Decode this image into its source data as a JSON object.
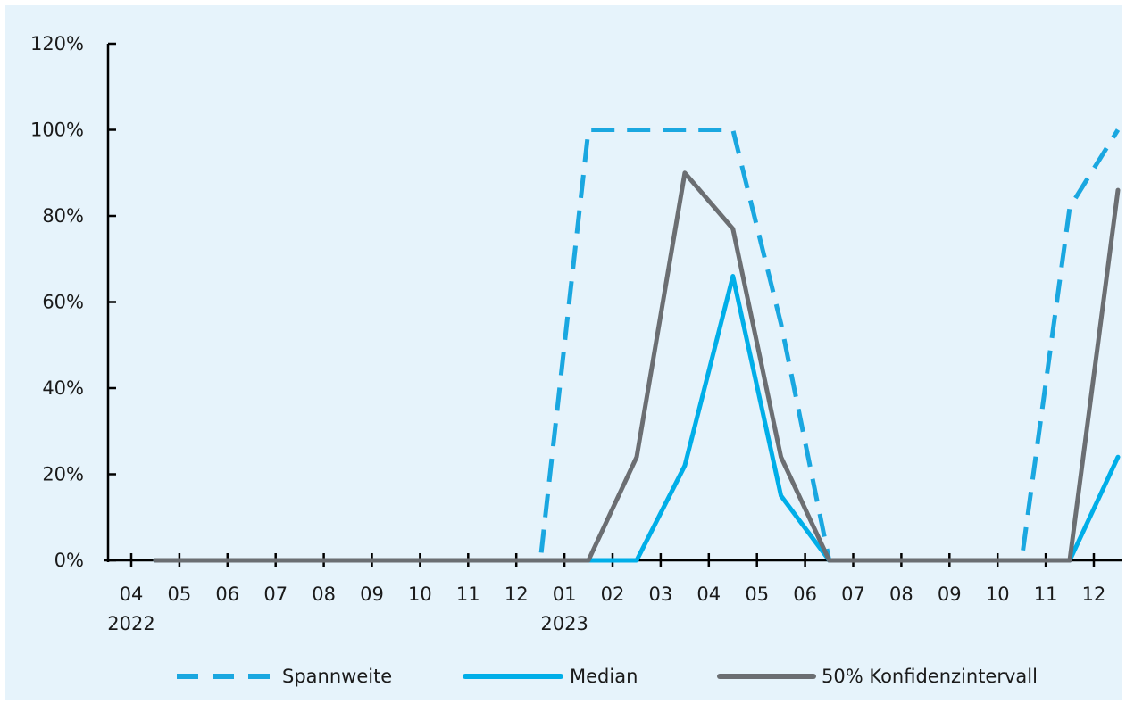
{
  "chart_data": {
    "type": "line",
    "categories": [
      "04",
      "05",
      "06",
      "07",
      "08",
      "09",
      "10",
      "11",
      "12",
      "01",
      "02",
      "03",
      "04",
      "05",
      "06",
      "07",
      "08",
      "09",
      "10",
      "11",
      "12"
    ],
    "year_labels": [
      {
        "category_index": 0,
        "label": "2022"
      },
      {
        "category_index": 9,
        "label": "2023"
      }
    ],
    "y_ticks": [
      "0%",
      "20%",
      "40%",
      "60%",
      "80%",
      "100%",
      "120%"
    ],
    "ylim": [
      0,
      120
    ],
    "legend_position": "bottom",
    "series": [
      {
        "name": "Spannweite",
        "style": "dashed",
        "color": "#1aa7e0",
        "values": [
          0,
          0,
          0,
          0,
          0,
          0,
          0,
          0,
          0,
          100,
          100,
          100,
          100,
          55,
          0,
          0,
          0,
          0,
          0,
          82,
          100
        ]
      },
      {
        "name": "Median",
        "style": "solid",
        "color": "#00aee8",
        "values": [
          0,
          0,
          0,
          0,
          0,
          0,
          0,
          0,
          0,
          0,
          0,
          22,
          66,
          15,
          0,
          0,
          0,
          0,
          0,
          0,
          24
        ]
      },
      {
        "name": "50% Konfidenzintervall",
        "style": "solid",
        "color": "#6b6e72",
        "values": [
          0,
          0,
          0,
          0,
          0,
          0,
          0,
          0,
          0,
          0,
          24,
          90,
          77,
          24,
          0,
          0,
          0,
          0,
          0,
          0,
          86
        ]
      }
    ]
  }
}
